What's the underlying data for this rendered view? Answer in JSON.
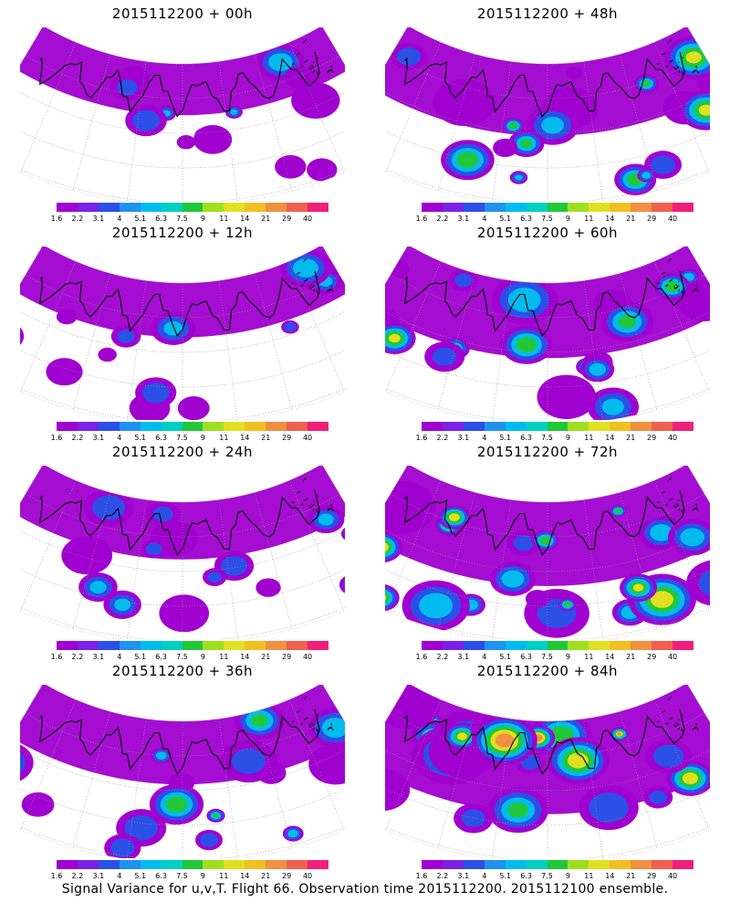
{
  "footer": "Signal Variance for u,v,T. Flight 66. Observation time 2015112200. 2015112100 ensemble.",
  "colorbar": {
    "labels": [
      "1.6",
      "2.2",
      "3.1",
      "4",
      "5.1",
      "6.3",
      "7.5",
      "9",
      "11",
      "14",
      "21",
      "29",
      "40"
    ],
    "colors": [
      "#a000d0",
      "#7a22e8",
      "#2c4fe8",
      "#1f92f0",
      "#00bcee",
      "#00d0c0",
      "#20c838",
      "#9ee020",
      "#e0e020",
      "#f0c020",
      "#f09040",
      "#f06050",
      "#f0207a"
    ]
  },
  "panels": [
    {
      "title": "2015112200 + 00h"
    },
    {
      "title": "2015112200 + 48h"
    },
    {
      "title": "2015112200 + 12h"
    },
    {
      "title": "2015112200 + 60h"
    },
    {
      "title": "2015112200 + 24h"
    },
    {
      "title": "2015112200 + 72h"
    },
    {
      "title": "2015112200 + 36h"
    },
    {
      "title": "2015112200 + 84h"
    }
  ]
}
